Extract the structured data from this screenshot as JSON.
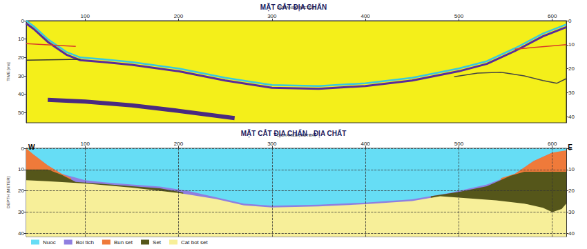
{
  "chart_data": [
    {
      "type": "line",
      "title": "MẶT CẮT ĐỊA CHẤN",
      "x_label": "DISTANCE [METER]",
      "y_label": "TIME [ms]",
      "xlim": [
        37,
        615
      ],
      "xticks": [
        100,
        200,
        300,
        400,
        500,
        600
      ],
      "ylim": [
        0,
        55.5
      ],
      "yticks": [
        0,
        10,
        20,
        30,
        40,
        50
      ],
      "y2lim": [
        0,
        42.5
      ],
      "y2ticks": [
        0,
        10,
        20,
        30,
        40
      ],
      "grid": false,
      "series": [
        {
          "color": "#37c8e0",
          "line_style": "solid",
          "x": [
            37,
            45,
            60,
            80,
            95,
            120,
            150,
            200,
            250,
            300,
            350,
            400,
            450,
            500,
            530,
            560,
            590,
            615
          ],
          "values": [
            0,
            3,
            10,
            17,
            20,
            21,
            22.5,
            26,
            31,
            35,
            35.5,
            34,
            31,
            26,
            22,
            15,
            7,
            2
          ]
        },
        {
          "color": "#5a2a9a",
          "line_style": "solid",
          "x": [
            37,
            45,
            60,
            80,
            95,
            120,
            150,
            200,
            250,
            300,
            350,
            400,
            450,
            500,
            530,
            560,
            590,
            615
          ],
          "values": [
            1.5,
            4.5,
            11.5,
            18.5,
            21.5,
            22.5,
            24,
            27.5,
            32.5,
            36.5,
            37,
            35.5,
            32.5,
            27.5,
            23.5,
            16.5,
            8.5,
            3.5
          ]
        },
        {
          "color": "#d93a2a",
          "line_style": "solid",
          "x": [
            37,
            90
          ],
          "values": [
            12.5,
            14
          ]
        },
        {
          "color": "#333333",
          "line_style": "solid",
          "x": [
            37,
            95
          ],
          "values": [
            21.5,
            21
          ]
        },
        {
          "color": "#d93a2a",
          "line_style": "solid",
          "x": [
            560,
            615
          ],
          "values": [
            15.5,
            13
          ]
        },
        {
          "color": "#444444",
          "line_style": "solid",
          "x": [
            495,
            520,
            545,
            570,
            590,
            605,
            615
          ],
          "values": [
            30.5,
            28.5,
            28,
            30,
            32.5,
            34,
            31.5
          ]
        },
        {
          "color": "#4a2a80",
          "line_style": "solid",
          "x": [
            60,
            100,
            150,
            200,
            260
          ],
          "values": [
            43,
            44,
            46,
            49,
            53
          ]
        }
      ]
    },
    {
      "type": "area",
      "title": "MẶT CẮT ĐỊA CHẤN - ĐỊA CHẤT",
      "x_label": "DISTANCE [METER]",
      "y_label": "DEPTH [METER]",
      "left_label": "W",
      "right_label": "E",
      "xlim": [
        37,
        615
      ],
      "xticks": [
        100,
        200,
        300,
        400,
        500,
        600
      ],
      "ylim": [
        0,
        41.5
      ],
      "yticks": [
        0,
        10,
        20,
        30,
        40
      ],
      "y2lim": [
        0,
        41.5
      ],
      "y2ticks": [
        0,
        10,
        20,
        30,
        40
      ],
      "grid": true,
      "legend": "lower left",
      "series": [
        {
          "name": "Nuoc",
          "color": "#66ddf5",
          "x": [
            37,
            615
          ],
          "values": [
            0,
            0
          ]
        },
        {
          "name": "Boi tich",
          "color": "#8f7fe0",
          "x": [
            45,
            60,
            75,
            100,
            120,
            150,
            180,
            210,
            240,
            270,
            300,
            350,
            400,
            450,
            490,
            530,
            560,
            580,
            600
          ],
          "values": [
            3,
            8,
            12,
            15,
            16,
            17,
            18,
            20,
            23,
            26,
            27,
            26.5,
            25.5,
            24,
            21,
            17,
            12,
            6,
            2
          ]
        },
        {
          "name": "Bun set",
          "color": "#ef7a3a",
          "x": [
            37,
            45,
            60,
            75,
            85,
            300,
            545,
            560,
            580,
            600,
            615
          ],
          "values": [
            0,
            3,
            8,
            12,
            14,
            null,
            14,
            12,
            6,
            2,
            1
          ]
        },
        {
          "name": "Set",
          "color": "#55561a",
          "x": [
            37,
            60,
            75,
            90,
            120,
            150,
            180,
            205,
            330,
            470,
            500,
            530,
            555,
            570,
            615
          ],
          "values": [
            10,
            10,
            12.5,
            15.8,
            16.8,
            17.8,
            18.8,
            20.8,
            null,
            22.5,
            20.5,
            17.8,
            13,
            11,
            11
          ]
        },
        {
          "name": "Cat bot set",
          "color": "#f7ef99",
          "x": [
            37,
            60,
            100,
            150,
            200,
            240,
            270,
            300,
            350,
            400,
            450,
            480,
            510,
            540,
            570,
            590,
            600,
            610,
            615
          ],
          "values": [
            15,
            15.5,
            16.5,
            18.5,
            21,
            23.8,
            26.8,
            27.8,
            27.3,
            26.3,
            24.8,
            22.5,
            23.5,
            24.5,
            26,
            28,
            30,
            28.5,
            26
          ]
        }
      ]
    }
  ]
}
